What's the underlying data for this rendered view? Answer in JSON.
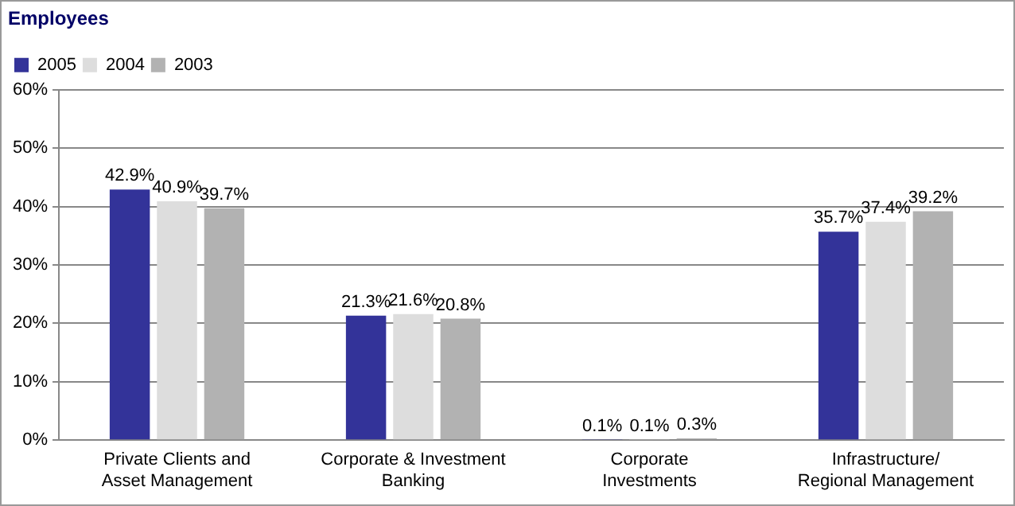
{
  "chart_data": {
    "type": "bar",
    "title": "Employees",
    "categories": [
      "Private Clients and\nAsset Management",
      "Corporate & Investment\nBanking",
      "Corporate\nInvestments",
      "Infrastructure/\nRegional Management"
    ],
    "series": [
      {
        "name": "2005",
        "color": "#333399",
        "values": [
          42.9,
          21.3,
          0.1,
          35.7
        ],
        "value_labels": [
          "42.9%",
          "21.3%",
          "0.1%",
          "35.7%"
        ]
      },
      {
        "name": "2004",
        "color": "#dddddd",
        "values": [
          40.9,
          21.6,
          0.1,
          37.4
        ],
        "value_labels": [
          "40.9%",
          "21.6%",
          "0.1%",
          "37.4%"
        ]
      },
      {
        "name": "2003",
        "color": "#b2b2b2",
        "values": [
          39.7,
          20.8,
          0.3,
          39.2
        ],
        "value_labels": [
          "39.7%",
          "20.8%",
          "0.3%",
          "39.2%"
        ]
      }
    ],
    "ylim": [
      0,
      60
    ],
    "yticks": [
      {
        "value": 0,
        "label": "0%"
      },
      {
        "value": 10,
        "label": "10%"
      },
      {
        "value": 20,
        "label": "20%"
      },
      {
        "value": 30,
        "label": "30%"
      },
      {
        "value": 40,
        "label": "40%"
      },
      {
        "value": 50,
        "label": "50%"
      },
      {
        "value": 60,
        "label": "60%"
      }
    ],
    "grid": "y",
    "legend": "top left"
  }
}
